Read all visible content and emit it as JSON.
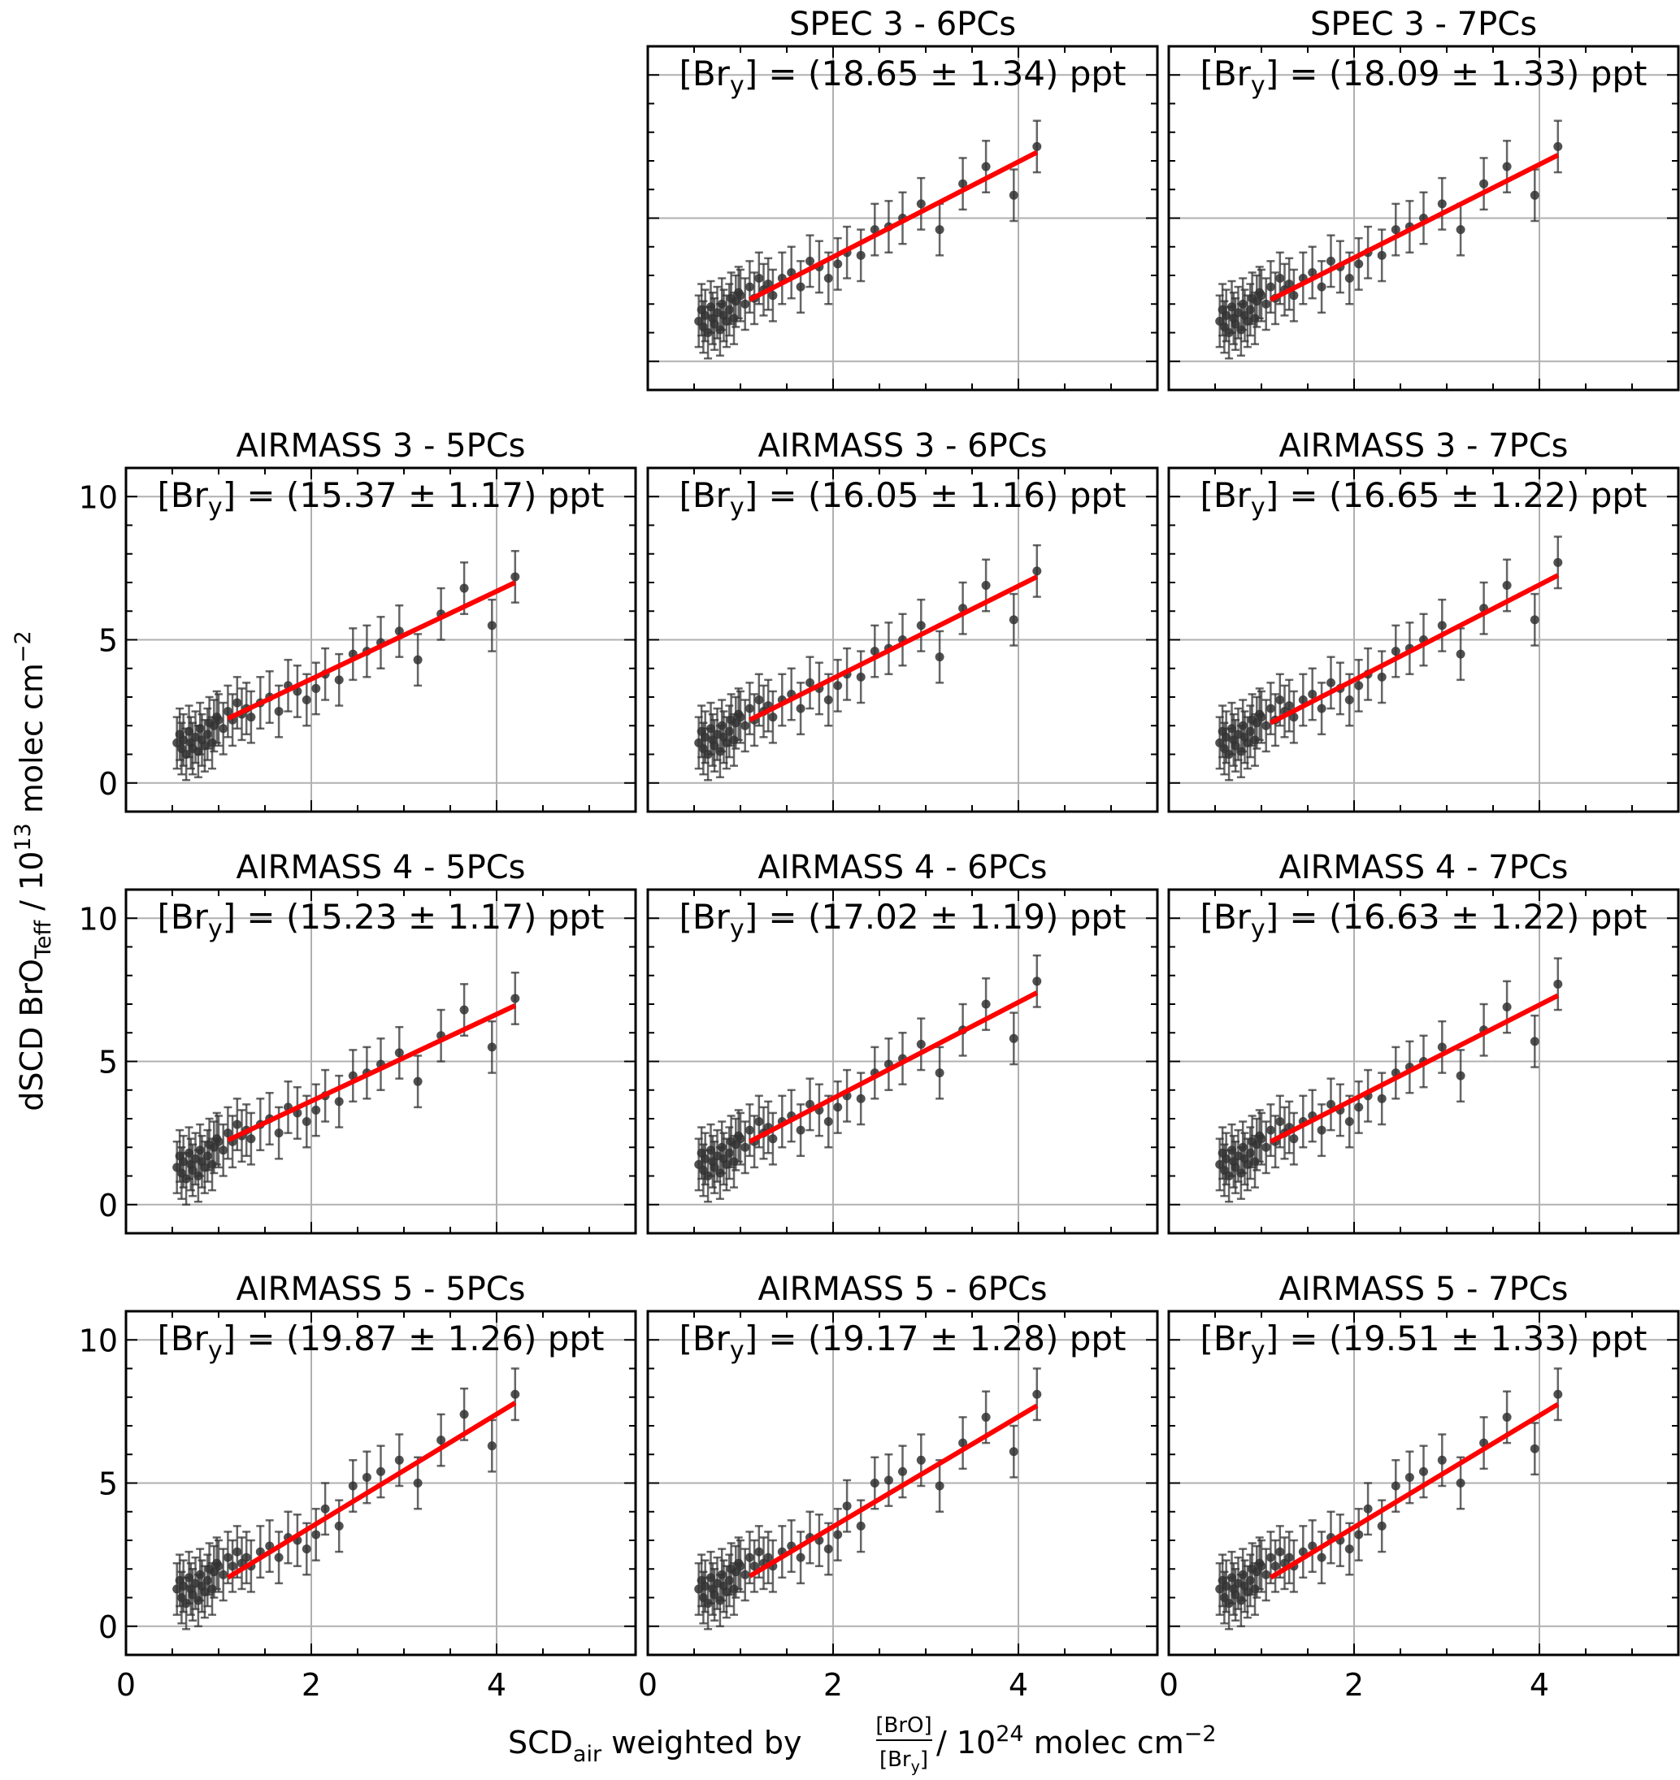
{
  "figure": {
    "ylabel": "dSCD BrO",
    "ylabel_sub": "Teff",
    "ylabel_unit_pre": " / 10",
    "ylabel_unit_sup": "13",
    "ylabel_unit_post": " molec cm",
    "ylabel_unit_sup2": "−2",
    "xlabel_pre": "SCD",
    "xlabel_sub": "air",
    "xlabel_mid": " weighted by ",
    "xlabel_frac_num": "[BrO]",
    "xlabel_frac_den": "[Br",
    "xlabel_frac_den_sub": "y",
    "xlabel_frac_den_end": "]",
    "xlabel_unit_pre": " / 10",
    "xlabel_unit_sup": "24",
    "xlabel_unit_post": " molec cm",
    "xlabel_unit_sup2": "−2",
    "annotation_prefix": "[Br",
    "annotation_sub": "y",
    "annotation_mid": "] = (",
    "annotation_pm": " ± ",
    "annotation_unit": ") ppt",
    "colors": {
      "points": "#333333",
      "fit": "#ff0000",
      "grid": "#b0b0b0"
    }
  },
  "chart_data": {
    "type": "scatter",
    "xlim": [
      0,
      5.5
    ],
    "ylim": [
      -1,
      11
    ],
    "xticks": [
      0,
      2,
      4
    ],
    "yticks": [
      0,
      5,
      10
    ],
    "grid": true,
    "point_x": [
      0.55,
      0.58,
      0.6,
      0.62,
      0.65,
      0.68,
      0.7,
      0.72,
      0.75,
      0.78,
      0.8,
      0.82,
      0.85,
      0.88,
      0.9,
      0.93,
      0.95,
      0.98,
      1.0,
      1.05,
      1.1,
      1.15,
      1.2,
      1.25,
      1.3,
      1.35,
      1.45,
      1.55,
      1.65,
      1.75,
      1.85,
      1.95,
      2.05,
      2.15,
      2.3,
      2.45,
      2.6,
      2.75,
      2.95,
      3.15,
      3.4,
      3.65,
      3.95,
      4.2
    ],
    "panels": [
      {
        "title": "SPEC 3 - 6PCs",
        "bry": "18.65",
        "err": "1.34",
        "fit": [
          1.1,
          2.15,
          4.2,
          7.3
        ],
        "y": [
          1.4,
          1.8,
          1.2,
          1.6,
          1.0,
          1.9,
          1.5,
          1.3,
          1.7,
          1.1,
          2.0,
          1.6,
          1.4,
          1.8,
          2.2,
          1.5,
          2.1,
          2.4,
          2.3,
          2.0,
          2.6,
          2.2,
          2.9,
          2.5,
          2.7,
          2.3,
          2.9,
          3.1,
          2.6,
          3.5,
          3.3,
          2.9,
          3.4,
          3.8,
          3.7,
          4.6,
          4.7,
          5.0,
          5.5,
          4.6,
          6.2,
          6.8,
          5.8,
          7.5
        ]
      },
      {
        "title": "SPEC 3 - 7PCs",
        "bry": "18.09",
        "err": "1.33",
        "fit": [
          1.1,
          2.15,
          4.2,
          7.2
        ],
        "y": [
          1.4,
          1.8,
          1.2,
          1.6,
          1.0,
          1.9,
          1.5,
          1.3,
          1.7,
          1.1,
          2.0,
          1.6,
          1.4,
          1.8,
          2.2,
          1.5,
          2.1,
          2.4,
          2.3,
          2.0,
          2.6,
          2.2,
          2.9,
          2.5,
          2.7,
          2.3,
          2.9,
          3.1,
          2.6,
          3.5,
          3.3,
          2.9,
          3.4,
          3.8,
          3.7,
          4.6,
          4.7,
          5.0,
          5.5,
          4.6,
          6.2,
          6.8,
          5.8,
          7.5
        ]
      },
      {
        "title": "AIRMASS 3 - 5PCs",
        "bry": "15.37",
        "err": "1.17",
        "fit": [
          1.1,
          2.25,
          4.2,
          7.0
        ],
        "y": [
          1.4,
          1.7,
          1.2,
          1.5,
          1.0,
          1.8,
          1.4,
          1.2,
          1.6,
          1.1,
          1.9,
          1.5,
          1.3,
          1.7,
          2.1,
          1.4,
          2.0,
          2.3,
          2.2,
          1.9,
          2.5,
          2.2,
          2.8,
          2.4,
          2.6,
          2.3,
          2.8,
          3.0,
          2.5,
          3.4,
          3.2,
          2.9,
          3.3,
          3.8,
          3.6,
          4.5,
          4.6,
          4.9,
          5.3,
          4.3,
          5.9,
          6.8,
          5.5,
          7.2
        ]
      },
      {
        "title": "AIRMASS 3 - 6PCs",
        "bry": "16.05",
        "err": "1.16",
        "fit": [
          1.1,
          2.2,
          4.2,
          7.2
        ],
        "y": [
          1.4,
          1.8,
          1.2,
          1.6,
          1.0,
          1.9,
          1.5,
          1.3,
          1.7,
          1.1,
          2.0,
          1.6,
          1.4,
          1.8,
          2.2,
          1.5,
          2.1,
          2.4,
          2.3,
          2.0,
          2.6,
          2.2,
          2.9,
          2.5,
          2.7,
          2.3,
          2.9,
          3.1,
          2.6,
          3.5,
          3.3,
          2.9,
          3.4,
          3.8,
          3.7,
          4.6,
          4.7,
          5.0,
          5.5,
          4.4,
          6.1,
          6.9,
          5.7,
          7.4
        ]
      },
      {
        "title": "AIRMASS 3 - 7PCs",
        "bry": "16.65",
        "err": "1.22",
        "fit": [
          1.1,
          2.1,
          4.2,
          7.25
        ],
        "y": [
          1.4,
          1.8,
          1.2,
          1.6,
          1.0,
          1.9,
          1.5,
          1.3,
          1.7,
          1.1,
          2.0,
          1.6,
          1.4,
          1.8,
          2.2,
          1.5,
          2.1,
          2.4,
          2.3,
          2.0,
          2.6,
          2.2,
          2.9,
          2.5,
          2.7,
          2.3,
          2.9,
          3.1,
          2.6,
          3.5,
          3.3,
          2.9,
          3.4,
          3.8,
          3.7,
          4.6,
          4.7,
          5.0,
          5.5,
          4.5,
          6.1,
          6.9,
          5.7,
          7.7
        ]
      },
      {
        "title": "AIRMASS 4 - 5PCs",
        "bry": "15.23",
        "err": "1.17",
        "fit": [
          1.1,
          2.25,
          4.2,
          6.95
        ],
        "y": [
          1.3,
          1.7,
          1.1,
          1.5,
          0.9,
          1.8,
          1.4,
          1.2,
          1.6,
          1.0,
          1.9,
          1.5,
          1.3,
          1.7,
          2.1,
          1.4,
          2.0,
          2.3,
          2.2,
          1.9,
          2.5,
          2.2,
          2.8,
          2.4,
          2.6,
          2.3,
          2.8,
          3.0,
          2.5,
          3.4,
          3.2,
          2.9,
          3.3,
          3.8,
          3.6,
          4.5,
          4.6,
          4.9,
          5.3,
          4.3,
          5.9,
          6.8,
          5.5,
          7.2
        ]
      },
      {
        "title": "AIRMASS 4 - 6PCs",
        "bry": "17.02",
        "err": "1.19",
        "fit": [
          1.1,
          2.2,
          4.2,
          7.4
        ],
        "y": [
          1.4,
          1.8,
          1.2,
          1.6,
          1.0,
          1.9,
          1.5,
          1.3,
          1.7,
          1.1,
          2.0,
          1.6,
          1.4,
          1.8,
          2.2,
          1.5,
          2.1,
          2.4,
          2.3,
          2.0,
          2.6,
          2.2,
          2.9,
          2.5,
          2.7,
          2.3,
          2.9,
          3.1,
          2.6,
          3.5,
          3.3,
          2.9,
          3.4,
          3.8,
          3.7,
          4.6,
          4.9,
          5.1,
          5.6,
          4.6,
          6.1,
          7.0,
          5.8,
          7.8
        ]
      },
      {
        "title": "AIRMASS 4 - 7PCs",
        "bry": "16.63",
        "err": "1.22",
        "fit": [
          1.1,
          2.2,
          4.2,
          7.3
        ],
        "y": [
          1.4,
          1.8,
          1.2,
          1.6,
          1.0,
          1.9,
          1.5,
          1.3,
          1.7,
          1.1,
          2.0,
          1.6,
          1.4,
          1.8,
          2.2,
          1.5,
          2.1,
          2.4,
          2.3,
          2.0,
          2.6,
          2.2,
          2.9,
          2.5,
          2.7,
          2.3,
          2.9,
          3.1,
          2.6,
          3.5,
          3.3,
          2.9,
          3.4,
          3.8,
          3.7,
          4.6,
          4.8,
          5.0,
          5.5,
          4.5,
          6.1,
          6.9,
          5.7,
          7.7
        ]
      },
      {
        "title": "AIRMASS 5 - 5PCs",
        "bry": "19.87",
        "err": "1.26",
        "fit": [
          1.1,
          1.7,
          4.2,
          7.8
        ],
        "y": [
          1.3,
          1.6,
          1.0,
          1.4,
          0.8,
          1.7,
          1.3,
          1.1,
          1.5,
          0.9,
          1.8,
          1.4,
          1.2,
          1.6,
          2.0,
          1.3,
          1.9,
          2.2,
          2.1,
          1.8,
          2.4,
          2.1,
          2.6,
          2.2,
          2.4,
          2.1,
          2.6,
          2.8,
          2.4,
          3.1,
          3.0,
          2.7,
          3.2,
          4.1,
          3.5,
          4.9,
          5.2,
          5.4,
          5.8,
          5.0,
          6.5,
          7.4,
          6.3,
          8.1
        ]
      },
      {
        "title": "AIRMASS 5 - 6PCs",
        "bry": "19.17",
        "err": "1.28",
        "fit": [
          1.1,
          1.75,
          4.2,
          7.7
        ],
        "y": [
          1.3,
          1.6,
          1.0,
          1.4,
          0.8,
          1.7,
          1.3,
          1.1,
          1.5,
          0.9,
          1.8,
          1.4,
          1.2,
          1.6,
          2.0,
          1.3,
          1.9,
          2.2,
          2.1,
          1.8,
          2.4,
          2.1,
          2.6,
          2.2,
          2.4,
          2.1,
          2.6,
          2.8,
          2.4,
          3.1,
          3.0,
          2.7,
          3.2,
          4.2,
          3.5,
          5.0,
          5.1,
          5.4,
          5.8,
          4.9,
          6.4,
          7.3,
          6.1,
          8.1
        ]
      },
      {
        "title": "AIRMASS 5 - 7PCs",
        "bry": "19.51",
        "err": "1.33",
        "fit": [
          1.1,
          1.7,
          4.2,
          7.75
        ],
        "y": [
          1.3,
          1.6,
          1.0,
          1.4,
          0.8,
          1.7,
          1.3,
          1.1,
          1.5,
          0.9,
          1.8,
          1.4,
          1.2,
          1.6,
          2.0,
          1.3,
          1.9,
          2.2,
          2.1,
          1.8,
          2.4,
          2.1,
          2.6,
          2.2,
          2.4,
          2.1,
          2.6,
          2.8,
          2.4,
          3.1,
          3.0,
          2.7,
          3.2,
          4.1,
          3.5,
          4.9,
          5.2,
          5.4,
          5.8,
          5.0,
          6.4,
          7.3,
          6.2,
          8.1
        ]
      }
    ]
  }
}
